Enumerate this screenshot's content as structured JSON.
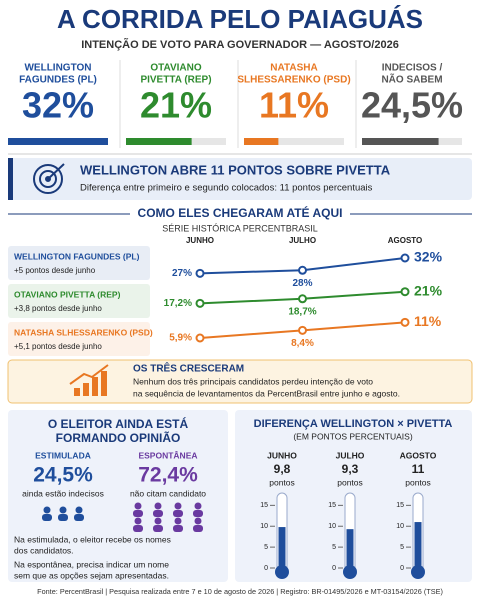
{
  "header": {
    "title": "A CORRIDA PELO PAIAGUÁS",
    "subtitle": "INTENÇÃO DE VOTO PARA GOVERNADOR — AGOSTO/2026"
  },
  "chart_data": [
    {
      "type": "cards",
      "categories": [
        [
          "WELLINGTON",
          "FAGUNDES (PL)"
        ],
        [
          "OTAVIANO",
          "PIVETTA (REP)"
        ],
        [
          "NATASHA",
          "SLHESSARENKO (PSD)"
        ],
        [
          "INDECISOS /",
          "NÃO SABEM"
        ]
      ],
      "values": [
        32,
        21,
        11,
        24.5
      ],
      "value_labels": [
        "32%",
        "21%",
        "11%",
        "24,5%"
      ],
      "colors": [
        "#1f4e9c",
        "#2e8b2e",
        "#e87722",
        "#555555"
      ]
    },
    {
      "type": "line",
      "title": "COMO ELES CHEGARAM ATÉ AQUI",
      "subtitle": "SÉRIE HISTÓRICA PERCENTBRASIL",
      "categories": [
        "JUNHO",
        "JULHO",
        "AGOSTO"
      ],
      "series": [
        {
          "name": "WELLINGTON FAGUNDES (PL)",
          "change": "+5 pontos desde junho",
          "color": "#1f4e9c",
          "values": [
            27,
            28,
            32
          ],
          "value_labels": [
            "27%",
            "28%",
            "32%"
          ]
        },
        {
          "name": "OTAVIANO PIVETTA (REP)",
          "change": "+3,8 pontos desde junho",
          "color": "#2e8b2e",
          "values": [
            17.2,
            18.7,
            21
          ],
          "value_labels": [
            "17,2%",
            "18,7%",
            "21%"
          ]
        },
        {
          "name": "NATASHA SLHESSARENKO (PSD)",
          "change": "+5,1 pontos desde junho",
          "color": "#e87722",
          "values": [
            5.9,
            8.4,
            11
          ],
          "value_labels": [
            "5,9%",
            "8,4%",
            "11%"
          ]
        }
      ]
    },
    {
      "type": "thermometer",
      "title": "DIFERENÇA WELLINGTON × PIVETTA",
      "subtitle": "(EM PONTOS PERCENTUAIS)",
      "categories": [
        "JUNHO",
        "JULHO",
        "AGOSTO"
      ],
      "values": [
        9.8,
        9.3,
        11
      ],
      "value_labels": [
        "9,8",
        "9,3",
        "11"
      ],
      "unit": "pontos",
      "color": "#1f4e9c",
      "ylim": [
        0,
        17
      ],
      "yticks": [
        0,
        5,
        10,
        15
      ]
    }
  ],
  "banner": {
    "title": "WELLINGTON ABRE 11 PONTOS SOBRE PIVETTA",
    "text": "Diferença entre primeiro e segundo colocados: 11 pontos percentuais"
  },
  "note": {
    "title": "OS TRÊS CRESCERAM",
    "lines": [
      "Nenhum dos três principais candidatos perdeu intenção de voto",
      "na sequência de levantamentos da PercentBrasil entre junho e agosto."
    ]
  },
  "opinion": {
    "title_lines": [
      "O ELEITOR AINDA ESTÁ",
      "FORMANDO OPINIÃO"
    ],
    "stats": [
      {
        "label": "ESTIMULADA",
        "value": "24,5%",
        "caption": "ainda estão indecisos"
      },
      {
        "label": "ESPONTÂNEA",
        "value": "72,4%",
        "caption": "não citam candidato"
      }
    ],
    "notes": [
      [
        "Na estimulada, o eleitor recebe os nomes",
        "dos candidatos."
      ],
      [
        "Na espontânea, precisa indicar um nome",
        "sem que as opções sejam apresentadas."
      ]
    ]
  },
  "footer": "Fonte: PercentBrasil  |  Pesquisa realizada entre 7 e 10 de agosto de 2026  |  Registro: BR-01495/2026 e MT-03154/2026 (TSE)"
}
